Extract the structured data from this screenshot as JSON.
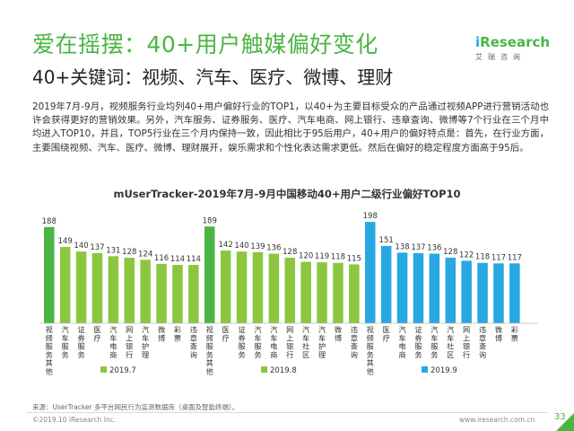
{
  "header": {
    "title": "爱在摇摆：40+用户触媒偏好变化",
    "subtitle": "40+关键词：视频、汽车、医疗、微博、理财"
  },
  "logo": {
    "brand_i": "i",
    "brand_rest": "Research",
    "cn": "艾瑞咨询"
  },
  "paragraph": "2019年7月-9月，视频服务行业均列40+用户偏好行业的TOP1，以40+为主要目标受众的产品通过视频APP进行营销活动也许会获得更好的营销效果。另外，汽车服务、证券服务、医疗、汽车电商、网上银行、违章查询、微博等7个行业在三个月中均进入TOP10，并且，TOP5行业在三个月内保持一致，因此相比于95后用户，40+用户的偏好特点是：首先，在行业方面，主要围绕视频、汽车、医疗、微博、理财展开，娱乐需求和个性化表达需求更低。然后在偏好的稳定程度方面高于95后。",
  "chart_data": {
    "type": "bar",
    "title": "mUserTracker-2019年7月-9月中国移动40+用户二级行业偏好TOP10",
    "series": [
      {
        "name": "2019.7",
        "color": "#8cc63f",
        "highlight_color": "#4bb544",
        "categories": [
          "视频服务其他",
          "汽车服务",
          "证券服务",
          "医疗",
          "汽车电商",
          "网上银行",
          "汽车护理",
          "微博",
          "彩票",
          "违章查询"
        ],
        "values": [
          188,
          149,
          140,
          137,
          131,
          128,
          124,
          116,
          114,
          114
        ]
      },
      {
        "name": "2019.8",
        "color": "#8cc63f",
        "highlight_color": "#4bb544",
        "categories": [
          "视频服务其他",
          "医疗",
          "证券服务",
          "汽车服务",
          "汽车电商",
          "网上银行",
          "汽车社区",
          "汽车护理",
          "微博",
          "违章查询"
        ],
        "values": [
          189,
          142,
          140,
          139,
          136,
          128,
          120,
          119,
          118,
          115
        ]
      },
      {
        "name": "2019.9",
        "color": "#27a8e0",
        "highlight_color": "#27a8e0",
        "categories": [
          "视频服务其他",
          "医疗",
          "汽车电商",
          "证券服务",
          "汽车服务",
          "汽车社区",
          "网上银行",
          "违章查询",
          "微博",
          "彩票"
        ],
        "values": [
          198,
          151,
          138,
          137,
          136,
          128,
          122,
          118,
          117,
          117
        ]
      }
    ]
  },
  "footer": {
    "source": "来源：UserTracker 多平台网民行为监测数据库（桌面及智能终端）。",
    "copyright": "©2019.10 iResearch Inc.",
    "website": "www.iresearch.com.cn",
    "page": "33"
  }
}
